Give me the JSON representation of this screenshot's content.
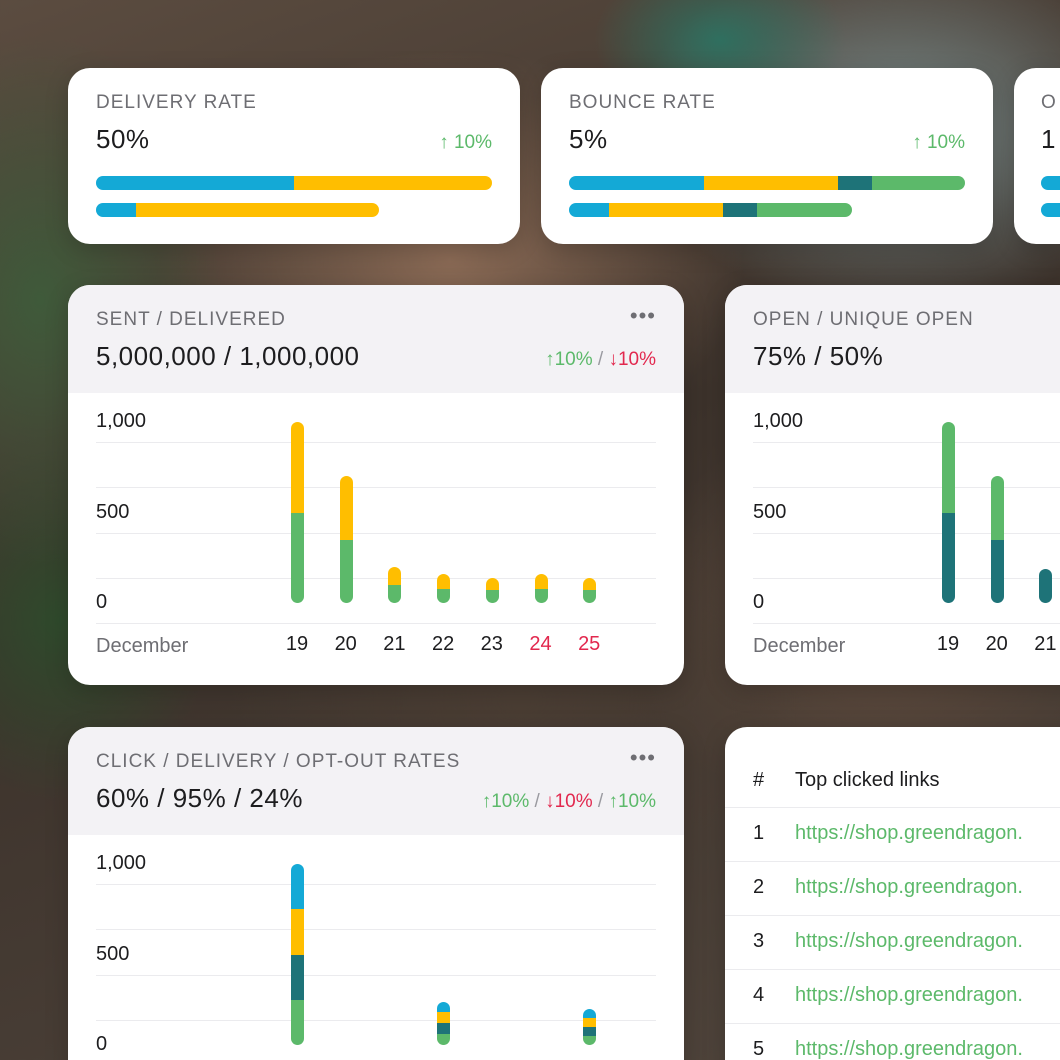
{
  "cards": {
    "delivery": {
      "label": "DELIVERY RATE",
      "value": "50%",
      "delta_arrow": "↑",
      "delta": "10%",
      "bars": [
        [
          {
            "color": "#14a9d6",
            "fraction": 0.5
          },
          {
            "color": "#ffbe00",
            "fraction": 0.5
          }
        ],
        [
          {
            "color": "#14a9d6",
            "fraction": 0.1
          },
          {
            "color": "#ffbe00",
            "fraction": 0.615
          }
        ]
      ]
    },
    "bounce": {
      "label": "BOUNCE RATE",
      "value": "5%",
      "delta_arrow": "↑",
      "delta": "10%",
      "bars": [
        [
          {
            "color": "#14a9d6",
            "fraction": 0.34
          },
          {
            "color": "#ffbe00",
            "fraction": 0.34
          },
          {
            "color": "#1e7378",
            "fraction": 0.085
          },
          {
            "color": "#5cb96a",
            "fraction": 0.235
          }
        ],
        [
          {
            "color": "#14a9d6",
            "fraction": 0.1
          },
          {
            "color": "#ffbe00",
            "fraction": 0.29
          },
          {
            "color": "#1e7378",
            "fraction": 0.085
          },
          {
            "color": "#5cb96a",
            "fraction": 0.24
          }
        ]
      ]
    },
    "third": {
      "label": "O",
      "value": "1"
    }
  },
  "sent_delivered": {
    "label": "SENT / DELIVERED",
    "value": "5,000,000 / 1,000,000",
    "delta_up_arrow": "↑",
    "delta_up": "10%",
    "slash": "/",
    "delta_down_arrow": "↓",
    "delta_down": "10%",
    "menu": "•••"
  },
  "open_unique": {
    "label": "OPEN / UNIQUE OPEN",
    "value": "75% / 50%"
  },
  "click_rates": {
    "label": "CLICK / DELIVERY / OPT-OUT RATES",
    "value": "60% / 95% / 24%",
    "d1_arrow": "↑",
    "d1": "10%",
    "slash": "/",
    "d2_arrow": "↓",
    "d2": "10%",
    "d3_arrow": "↑",
    "d3": "10%",
    "menu": "•••"
  },
  "top_links": {
    "hash": "#",
    "title": "Top clicked links",
    "rows": [
      {
        "num": "1",
        "url": "https://shop.greendragon."
      },
      {
        "num": "2",
        "url": "https://shop.greendragon."
      },
      {
        "num": "3",
        "url": "https://shop.greendragon."
      },
      {
        "num": "4",
        "url": "https://shop.greendragon."
      },
      {
        "num": "5",
        "url": "https://shop.greendragon."
      }
    ]
  },
  "chart_data": [
    {
      "type": "bar",
      "stacked": true,
      "xlabel": "December",
      "categories": [
        "19",
        "20",
        "21",
        "22",
        "23",
        "24",
        "25"
      ],
      "weekend_categories": [
        "24",
        "25"
      ],
      "yticks": [
        "1,000",
        "500",
        "0"
      ],
      "ylim": [
        0,
        1000
      ],
      "series": [
        {
          "color": "#5cb96a",
          "values": [
            500,
            350,
            100,
            80,
            70,
            80,
            70
          ]
        },
        {
          "color": "#ffbe00",
          "values": [
            500,
            350,
            100,
            80,
            70,
            80,
            70
          ]
        }
      ],
      "grid": true
    },
    {
      "type": "bar",
      "stacked": true,
      "xlabel": "December",
      "categories": [
        "19",
        "20",
        "21"
      ],
      "yticks": [
        "1,000",
        "500",
        "0"
      ],
      "ylim": [
        0,
        1000
      ],
      "series": [
        {
          "color": "#1e7378",
          "values": [
            500,
            350,
            190
          ]
        },
        {
          "color": "#5cb96a",
          "values": [
            500,
            350,
            0
          ]
        }
      ],
      "grid": true
    },
    {
      "type": "bar",
      "stacked": true,
      "yticks": [
        "1,000",
        "500",
        "0"
      ],
      "ylim": [
        0,
        1000
      ],
      "category_slots": 7,
      "category_index": [
        0,
        3,
        6
      ],
      "series": [
        {
          "color": "#5cb96a",
          "values": [
            250,
            60,
            50
          ]
        },
        {
          "color": "#1e7378",
          "values": [
            250,
            60,
            50
          ]
        },
        {
          "color": "#ffbe00",
          "values": [
            250,
            60,
            50
          ]
        },
        {
          "color": "#14a9d6",
          "values": [
            250,
            60,
            50
          ]
        }
      ],
      "grid": true
    }
  ]
}
